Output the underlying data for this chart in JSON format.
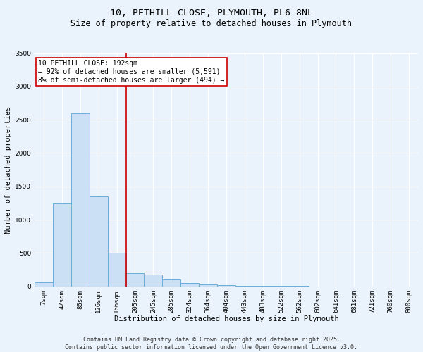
{
  "title_line1": "10, PETHILL CLOSE, PLYMOUTH, PL6 8NL",
  "title_line2": "Size of property relative to detached houses in Plymouth",
  "xlabel": "Distribution of detached houses by size in Plymouth",
  "ylabel": "Number of detached properties",
  "categories": [
    "7sqm",
    "47sqm",
    "86sqm",
    "126sqm",
    "166sqm",
    "205sqm",
    "245sqm",
    "285sqm",
    "324sqm",
    "364sqm",
    "404sqm",
    "443sqm",
    "483sqm",
    "522sqm",
    "562sqm",
    "602sqm",
    "641sqm",
    "681sqm",
    "721sqm",
    "760sqm",
    "800sqm"
  ],
  "values": [
    60,
    1240,
    2600,
    1350,
    500,
    200,
    175,
    100,
    50,
    30,
    15,
    10,
    8,
    5,
    3,
    2,
    1,
    1,
    1,
    0,
    0
  ],
  "bar_color": "#cce0f5",
  "bar_edge_color": "#6baed6",
  "vline_x_index": 4.5,
  "vline_color": "#cc0000",
  "annotation_text": "10 PETHILL CLOSE: 192sqm\n← 92% of detached houses are smaller (5,591)\n8% of semi-detached houses are larger (494) →",
  "annotation_box_color": "#cc0000",
  "ylim": [
    0,
    3500
  ],
  "yticks": [
    0,
    500,
    1000,
    1500,
    2000,
    2500,
    3000,
    3500
  ],
  "bg_color": "#eaf3fb",
  "plot_bg_color": "#eaf3fb",
  "footer_line1": "Contains HM Land Registry data © Crown copyright and database right 2025.",
  "footer_line2": "Contains public sector information licensed under the Open Government Licence v3.0.",
  "title_fontsize": 9.5,
  "subtitle_fontsize": 8.5,
  "axis_label_fontsize": 7.5,
  "tick_fontsize": 6.5,
  "annotation_fontsize": 7,
  "footer_fontsize": 6
}
